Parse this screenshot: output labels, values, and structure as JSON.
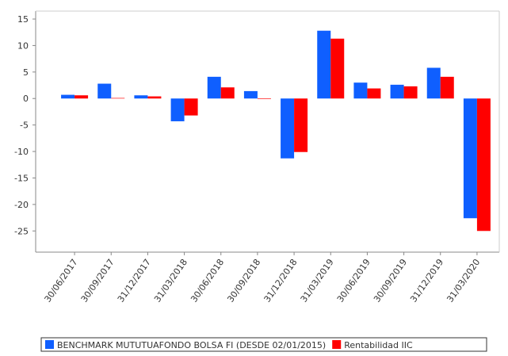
{
  "chart_data": {
    "type": "bar",
    "categories": [
      "30/06/2017",
      "30/09/2017",
      "31/12/2017",
      "31/03/2018",
      "30/06/2018",
      "30/09/2018",
      "31/12/2018",
      "31/03/2019",
      "30/06/2019",
      "30/09/2019",
      "31/12/2019",
      "31/03/2020"
    ],
    "series": [
      {
        "name": "BENCHMARK MUTUTUAFONDO BOLSA FI (DESDE 02/01/2015)",
        "color": "#0f5fff",
        "values": [
          0.7,
          2.8,
          0.6,
          -4.3,
          4.1,
          1.4,
          -11.3,
          12.8,
          3.0,
          2.6,
          5.8,
          -22.6
        ]
      },
      {
        "name": "Rentabilidad IIC",
        "color": "#ff0000",
        "values": [
          0.6,
          0.1,
          0.4,
          -3.2,
          2.1,
          -0.1,
          -10.1,
          11.3,
          1.9,
          2.3,
          4.1,
          -25.0
        ]
      }
    ],
    "ylim": [
      -29,
      16.5
    ],
    "yticks": [
      15,
      10,
      5,
      0,
      -5,
      -10,
      -15,
      -20,
      -25
    ],
    "grid": false,
    "legend": "bottom"
  }
}
